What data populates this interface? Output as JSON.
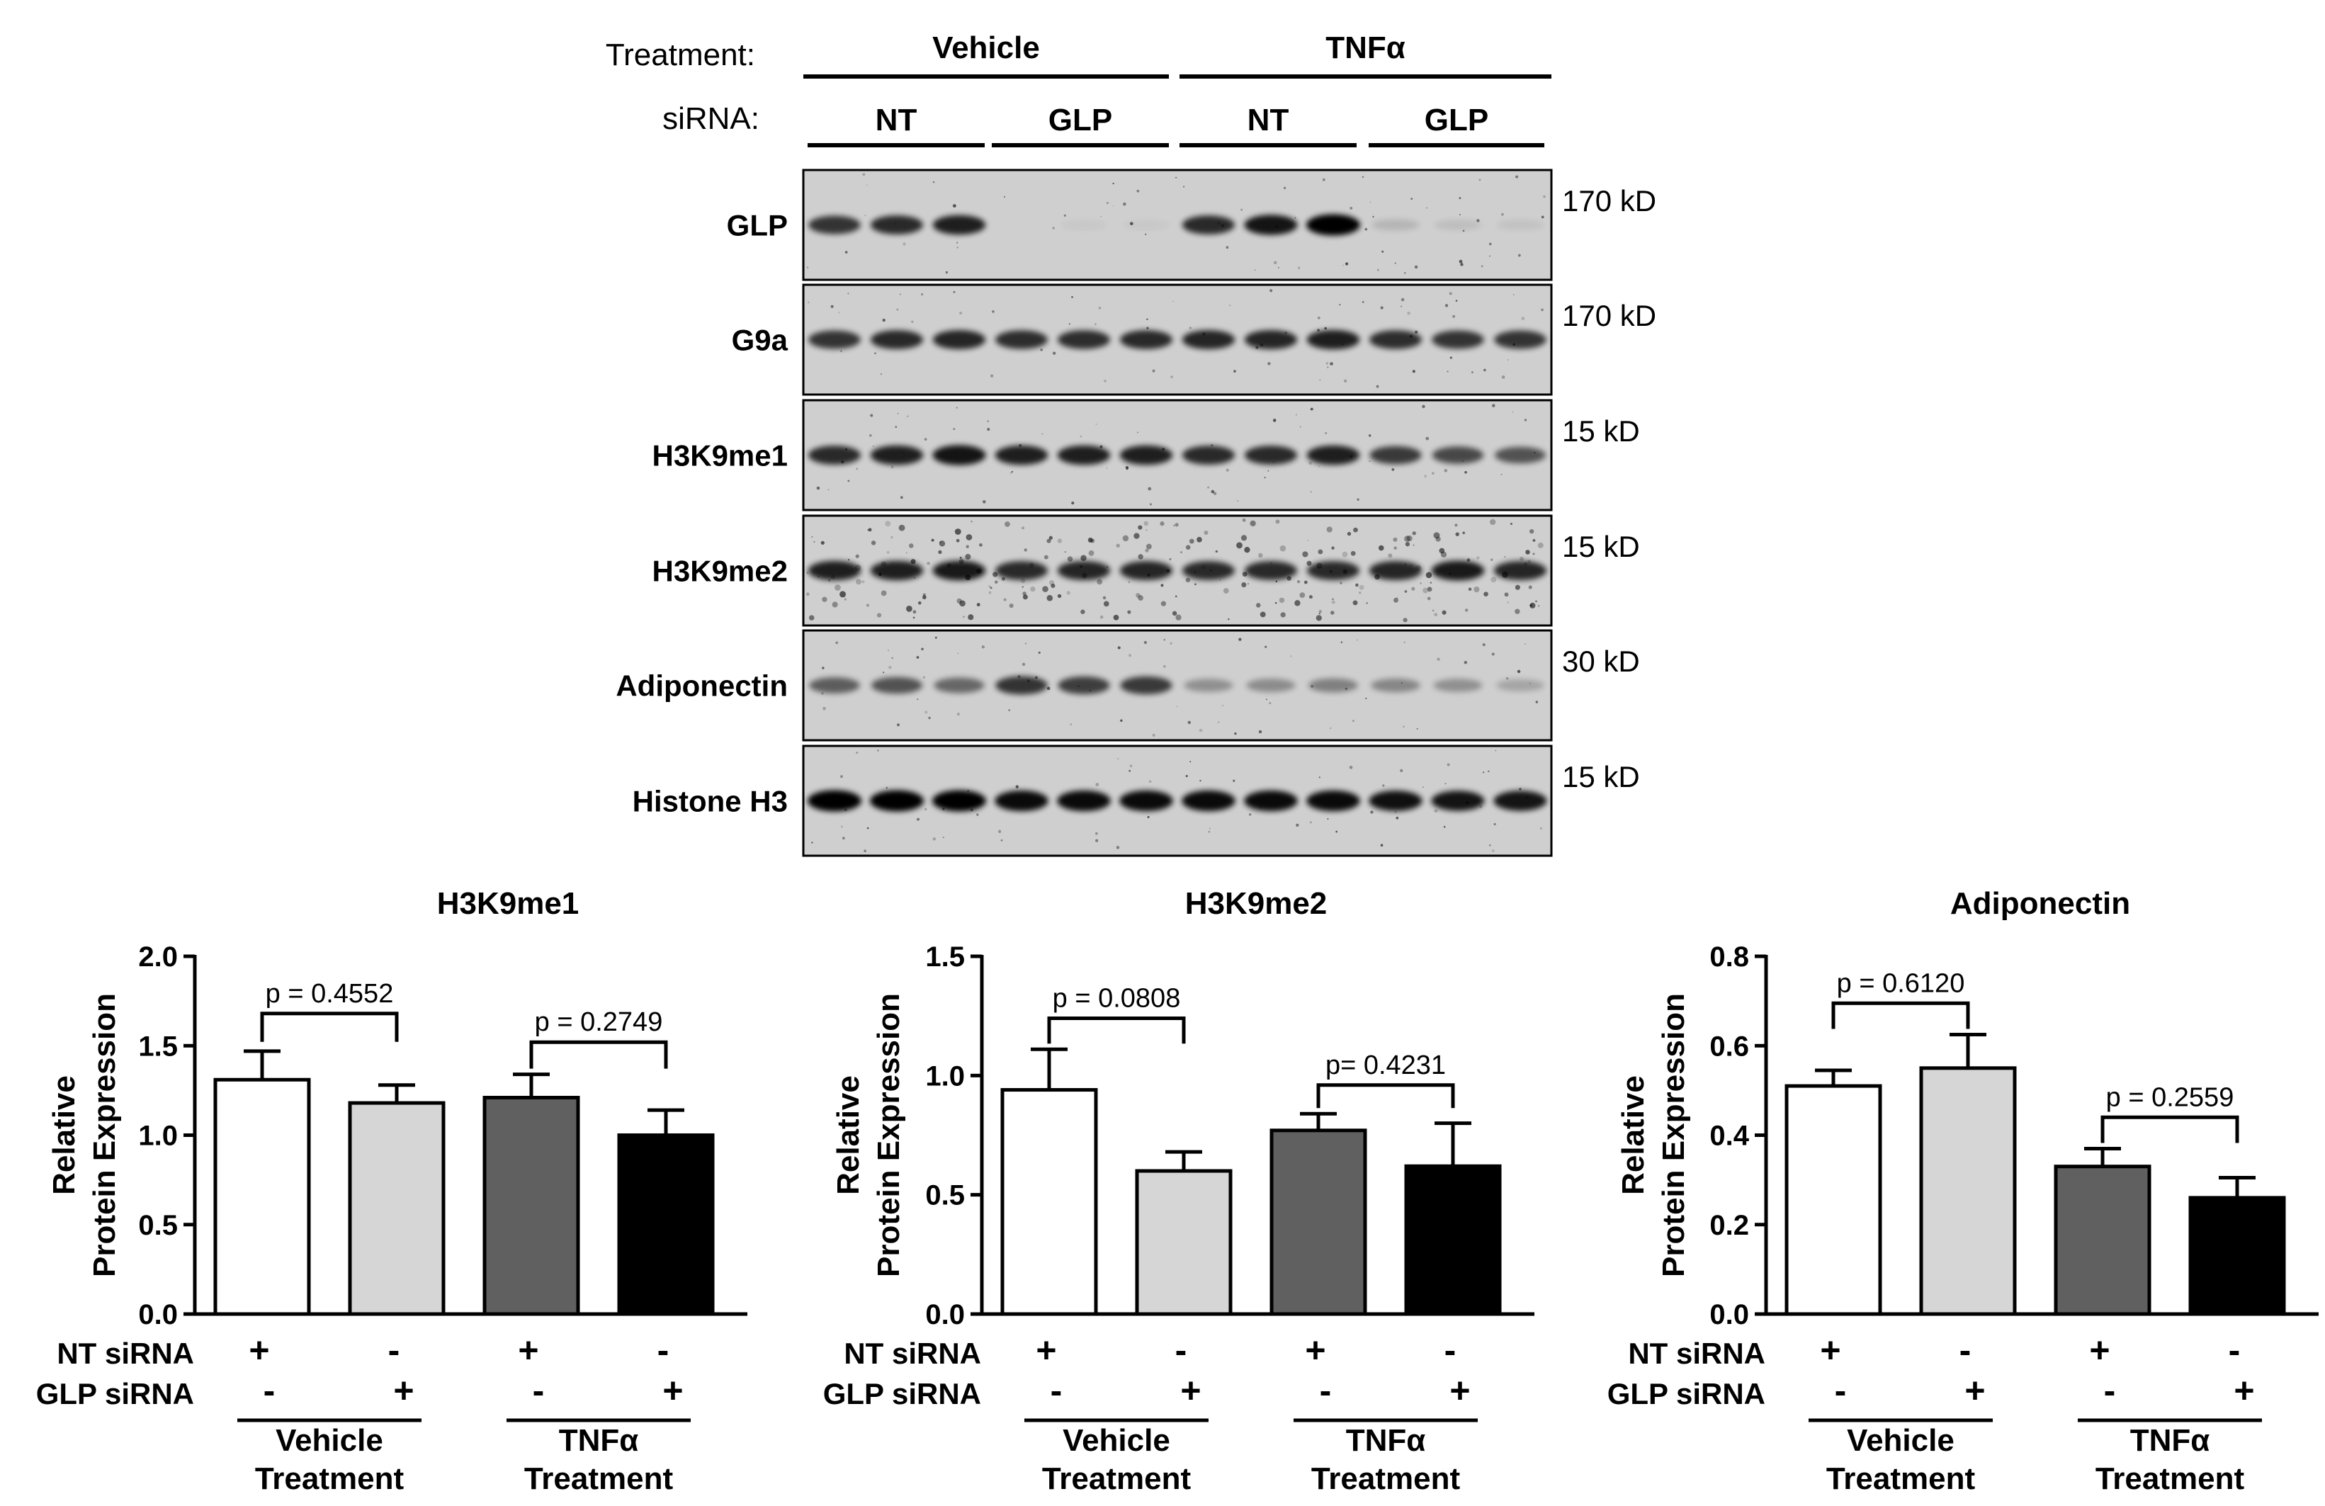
{
  "blot": {
    "treatment_label": "Treatment:",
    "sirna_label": "siRNA:",
    "treatment_groups": [
      "Vehicle",
      "TNFα"
    ],
    "sirna_groups": [
      "NT",
      "GLP",
      "NT",
      "GLP"
    ],
    "lanes": 12,
    "rows": [
      {
        "name": "GLP",
        "size": "170 kD",
        "band_intensity": [
          0.75,
          0.8,
          0.85,
          0.0,
          0.03,
          0.03,
          0.8,
          0.9,
          1.0,
          0.12,
          0.08,
          0.06
        ],
        "grain": "clean"
      },
      {
        "name": "G9a",
        "size": "170 kD",
        "band_intensity": [
          0.75,
          0.8,
          0.82,
          0.78,
          0.78,
          0.8,
          0.82,
          0.82,
          0.85,
          0.78,
          0.75,
          0.75
        ],
        "grain": "clean"
      },
      {
        "name": "H3K9me1",
        "size": "15 kD",
        "band_intensity": [
          0.8,
          0.85,
          0.9,
          0.85,
          0.85,
          0.85,
          0.8,
          0.8,
          0.85,
          0.72,
          0.65,
          0.6
        ],
        "grain": "clean"
      },
      {
        "name": "H3K9me2",
        "size": "15 kD",
        "band_intensity": [
          0.85,
          0.85,
          0.88,
          0.8,
          0.82,
          0.82,
          0.8,
          0.8,
          0.8,
          0.82,
          0.88,
          0.82
        ],
        "grain": "speckled"
      },
      {
        "name": "Adiponectin",
        "size": "30 kD",
        "band_intensity": [
          0.55,
          0.6,
          0.5,
          0.75,
          0.7,
          0.72,
          0.3,
          0.32,
          0.38,
          0.35,
          0.3,
          0.2
        ],
        "grain": "clean"
      },
      {
        "name": "Histone H3",
        "size": "15 kD",
        "band_intensity": [
          1.0,
          1.0,
          1.0,
          0.95,
          0.95,
          0.95,
          0.95,
          0.95,
          0.95,
          0.92,
          0.9,
          0.9
        ],
        "grain": "clean"
      }
    ]
  },
  "chart_data": [
    {
      "type": "bar",
      "title": "H3K9me1",
      "ylabel": "Relative Protein Expression",
      "ylim": [
        0,
        2.0
      ],
      "yticks": [
        "0.0",
        "0.5",
        "1.0",
        "1.5",
        "2.0"
      ],
      "values": [
        1.31,
        1.18,
        1.21,
        1.0
      ],
      "errors": [
        0.16,
        0.1,
        0.13,
        0.14
      ],
      "comparisons": [
        {
          "pair": [
            0,
            1
          ],
          "label": "p = 0.4552",
          "y": 1.68
        },
        {
          "pair": [
            2,
            3
          ],
          "label": "p = 0.2749",
          "y": 1.52
        }
      ]
    },
    {
      "type": "bar",
      "title": "H3K9me2",
      "ylabel": "Relative Protein Expression",
      "ylim": [
        0,
        1.5
      ],
      "yticks": [
        "0.0",
        "0.5",
        "1.0",
        "1.5"
      ],
      "values": [
        0.94,
        0.6,
        0.77,
        0.62
      ],
      "errors": [
        0.17,
        0.08,
        0.07,
        0.18
      ],
      "comparisons": [
        {
          "pair": [
            0,
            1
          ],
          "label": "p = 0.0808",
          "y": 1.24
        },
        {
          "pair": [
            2,
            3
          ],
          "label": "p= 0.4231",
          "y": 0.96
        }
      ]
    },
    {
      "type": "bar",
      "title": "Adiponectin",
      "ylabel": "Relative Protein Expression",
      "ylim": [
        0,
        0.8
      ],
      "yticks": [
        "0.0",
        "0.2",
        "0.4",
        "0.6",
        "0.8"
      ],
      "values": [
        0.51,
        0.55,
        0.33,
        0.26
      ],
      "errors": [
        0.035,
        0.075,
        0.04,
        0.045
      ],
      "comparisons": [
        {
          "pair": [
            0,
            1
          ],
          "label": "p = 0.6120",
          "y": 0.695
        },
        {
          "pair": [
            2,
            3
          ],
          "label": "p = 0.2559",
          "y": 0.44
        }
      ]
    }
  ],
  "bar_fills": [
    "#ffffff",
    "#d6d6d6",
    "#606060",
    "#000000"
  ],
  "conditions": {
    "row1_label": "NT siRNA",
    "row2_label": "GLP siRNA",
    "nt_signs": [
      "+",
      "-",
      "+",
      "-"
    ],
    "glp_signs": [
      "-",
      "+",
      "-",
      "+"
    ],
    "groups": [
      {
        "line1": "Vehicle",
        "line2": "Treatment"
      },
      {
        "line1": "TNFα",
        "line2": "Treatment"
      }
    ]
  }
}
